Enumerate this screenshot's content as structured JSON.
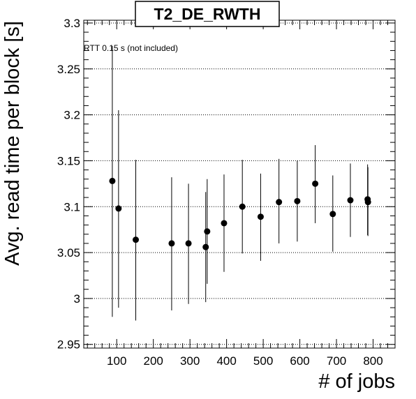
{
  "chart_data": {
    "type": "scatter",
    "title": "T2_DE_RWTH",
    "xlabel": "# of jobs",
    "ylabel": "Avg. read time per block [s]",
    "annotation": "RTT 0.15 s (not included)",
    "xlim": [
      10,
      860
    ],
    "ylim": [
      2.946,
      3.303
    ],
    "x_ticks": [
      100,
      200,
      300,
      400,
      500,
      600,
      700,
      800
    ],
    "x_tick_labels": [
      "100",
      "200",
      "300",
      "400",
      "500",
      "600",
      "700",
      "800"
    ],
    "y_ticks": [
      2.95,
      3.0,
      3.05,
      3.1,
      3.15,
      3.2,
      3.25,
      3.3
    ],
    "y_tick_labels": [
      "2.95",
      "3",
      "3.05",
      "3.1",
      "3.15",
      "3.2",
      "3.25",
      "3.3"
    ],
    "grid": "horizontal dotted",
    "points": [
      {
        "x": 88,
        "y": 3.128,
        "err_low": 2.98,
        "err_high": 3.275
      },
      {
        "x": 105,
        "y": 3.098,
        "err_low": 2.99,
        "err_high": 3.205
      },
      {
        "x": 152,
        "y": 3.064,
        "err_low": 2.976,
        "err_high": 3.151
      },
      {
        "x": 250,
        "y": 3.06,
        "err_low": 2.987,
        "err_high": 3.132
      },
      {
        "x": 296,
        "y": 3.06,
        "err_low": 2.994,
        "err_high": 3.125
      },
      {
        "x": 343,
        "y": 3.056,
        "err_low": 2.996,
        "err_high": 3.116
      },
      {
        "x": 347,
        "y": 3.073,
        "err_low": 3.016,
        "err_high": 3.13
      },
      {
        "x": 393,
        "y": 3.082,
        "err_low": 3.029,
        "err_high": 3.135
      },
      {
        "x": 443,
        "y": 3.1,
        "err_low": 3.049,
        "err_high": 3.151
      },
      {
        "x": 493,
        "y": 3.089,
        "err_low": 3.041,
        "err_high": 3.136
      },
      {
        "x": 543,
        "y": 3.105,
        "err_low": 3.06,
        "err_high": 3.152
      },
      {
        "x": 593,
        "y": 3.106,
        "err_low": 3.062,
        "err_high": 3.15
      },
      {
        "x": 642,
        "y": 3.125,
        "err_low": 3.082,
        "err_high": 3.167
      },
      {
        "x": 690,
        "y": 3.092,
        "err_low": 3.051,
        "err_high": 3.134
      },
      {
        "x": 738,
        "y": 3.107,
        "err_low": 3.067,
        "err_high": 3.147
      },
      {
        "x": 785,
        "y": 3.108,
        "err_low": 3.069,
        "err_high": 3.146
      },
      {
        "x": 786,
        "y": 3.105,
        "err_low": 3.068,
        "err_high": 3.143
      }
    ]
  }
}
